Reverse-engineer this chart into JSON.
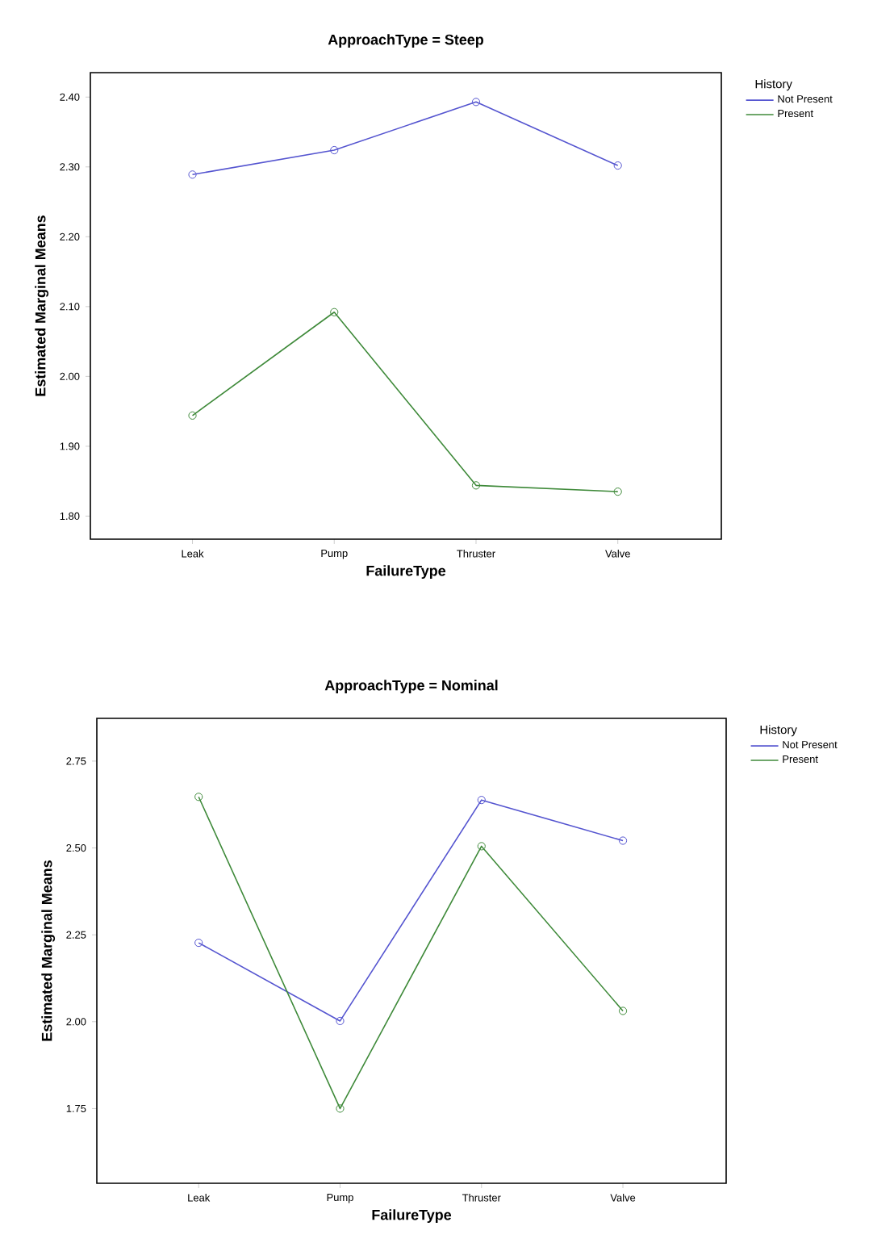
{
  "chart_data": [
    {
      "type": "line",
      "title": "ApproachType = Steep",
      "xlabel": "FailureType",
      "ylabel": "Estimated Marginal Means",
      "legend_title": "History",
      "legend": "right",
      "marker": "circle",
      "categories": [
        "Leak",
        "Pump",
        "Thruster",
        "Valve"
      ],
      "series": [
        {
          "name": "Not Present",
          "color": "#5555d0",
          "values": [
            2.289,
            2.324,
            2.393,
            2.302
          ]
        },
        {
          "name": "Present",
          "color": "#3f8a3a",
          "values": [
            1.944,
            2.092,
            1.844,
            1.835
          ]
        }
      ],
      "ylim": [
        1.767,
        2.435
      ],
      "yticks": [
        {
          "value": 1.8,
          "label": "1.80"
        },
        {
          "value": 1.9,
          "label": "1.90"
        },
        {
          "value": 2.0,
          "label": "2.00"
        },
        {
          "value": 2.1,
          "label": "2.10"
        },
        {
          "value": 2.2,
          "label": "2.20"
        },
        {
          "value": 2.3,
          "label": "2.30"
        },
        {
          "value": 2.4,
          "label": "2.40"
        }
      ]
    },
    {
      "type": "line",
      "title": "ApproachType = Nominal",
      "xlabel": "FailureType",
      "ylabel": "Estimated Marginal Means",
      "legend_title": "History",
      "legend": "right",
      "marker": "circle",
      "categories": [
        "Leak",
        "Pump",
        "Thruster",
        "Valve"
      ],
      "series": [
        {
          "name": "Not Present",
          "color": "#5555d0",
          "values": [
            2.227,
            2.002,
            2.638,
            2.521
          ]
        },
        {
          "name": "Present",
          "color": "#3f8a3a",
          "values": [
            2.647,
            1.75,
            2.505,
            2.031
          ]
        }
      ],
      "ylim": [
        1.535,
        2.873
      ],
      "yticks": [
        {
          "value": 1.75,
          "label": "1.75"
        },
        {
          "value": 2.0,
          "label": "2.00"
        },
        {
          "value": 2.25,
          "label": "2.25"
        },
        {
          "value": 2.5,
          "label": "2.50"
        },
        {
          "value": 2.75,
          "label": "2.75"
        }
      ]
    }
  ]
}
